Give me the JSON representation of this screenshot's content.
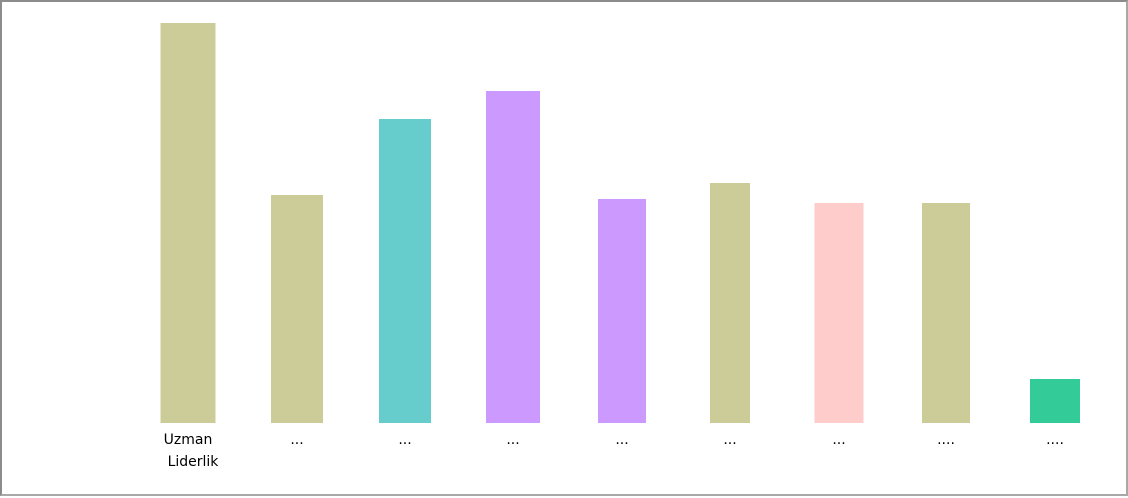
{
  "chart_data": {
    "type": "bar",
    "title": "",
    "xlabel": "",
    "ylabel": "",
    "ylim": [
      0,
      100
    ],
    "grid": false,
    "categories": [
      [
        "Uzman",
        "Liderlik"
      ],
      [
        "..."
      ],
      [
        "..."
      ],
      [
        "..."
      ],
      [
        "..."
      ],
      [
        "..."
      ],
      [
        "..."
      ],
      [
        "...."
      ],
      [
        "...."
      ]
    ],
    "values": [
      100,
      57,
      76,
      83,
      56,
      60,
      55,
      55,
      11
    ],
    "colors": [
      "#cccc99",
      "#cccc99",
      "#66cccc",
      "#cc99ff",
      "#cc99ff",
      "#cccc99",
      "#ffcccc",
      "#cccc99",
      "#33cc99"
    ]
  }
}
